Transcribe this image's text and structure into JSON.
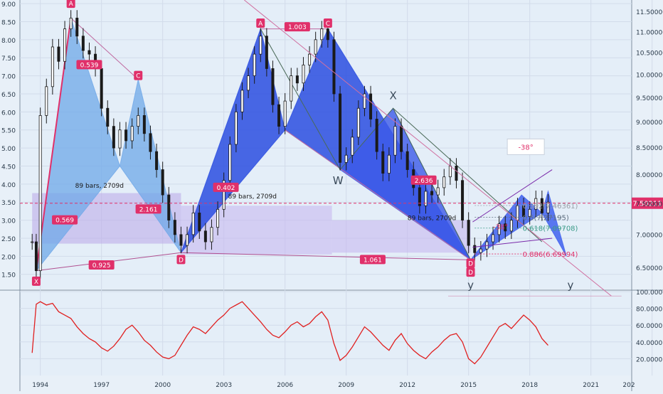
{
  "chart_data": [
    {
      "type": "candlestick",
      "panel": "price",
      "y_left": {
        "ticks": [
          "9.00",
          "8.50",
          "8.00",
          "7.50",
          "7.00",
          "6.50",
          "6.00",
          "5.50",
          "5.00",
          "4.50",
          "4.00",
          "3.50",
          "3.00",
          "2.50",
          "2.00",
          "1.50"
        ],
        "ylim": [
          1.1,
          9.1
        ]
      },
      "y_right": {
        "ticks": [
          "11.50000",
          "11.00000",
          "10.50000",
          "10.00000",
          "9.50000",
          "9.00000",
          "8.50000",
          "8.00000",
          "7.50000",
          "7.00000",
          "6.50000"
        ],
        "ylim": [
          6.2,
          11.8
        ],
        "scale": "log"
      },
      "x_ticks": [
        "1994",
        "1997",
        "2000",
        "2003",
        "2006",
        "2009",
        "2012",
        "2015",
        "2018",
        "2021",
        "202"
      ],
      "xlim": [
        1993.0,
        2023.0
      ],
      "grid": true,
      "series": [
        {
          "values": [
            [
              1993.6,
              2.4
            ],
            [
              1993.8,
              1.6
            ],
            [
              1994.0,
              5.9
            ],
            [
              1994.3,
              6.7
            ],
            [
              1994.6,
              7.8
            ],
            [
              1994.9,
              7.4
            ],
            [
              1995.2,
              8.3
            ],
            [
              1995.5,
              8.6
            ],
            [
              1995.8,
              8.1
            ],
            [
              1996.1,
              7.7
            ],
            [
              1996.4,
              7.6
            ],
            [
              1996.7,
              7.2
            ],
            [
              1997.0,
              6.1
            ],
            [
              1997.3,
              5.6
            ],
            [
              1997.6,
              5.0
            ],
            [
              1997.9,
              5.5
            ],
            [
              1998.2,
              5.2
            ],
            [
              1998.5,
              5.6
            ],
            [
              1998.8,
              5.9
            ],
            [
              1999.1,
              5.4
            ],
            [
              1999.4,
              4.9
            ],
            [
              1999.7,
              4.4
            ],
            [
              2000.0,
              3.7
            ],
            [
              2000.3,
              3.0
            ],
            [
              2000.6,
              2.6
            ],
            [
              2000.9,
              2.3
            ],
            [
              2001.2,
              2.6
            ],
            [
              2001.5,
              3.2
            ],
            [
              2001.8,
              2.7
            ],
            [
              2002.1,
              2.4
            ],
            [
              2002.4,
              2.8
            ],
            [
              2002.7,
              3.3
            ],
            [
              2003.0,
              4.1
            ],
            [
              2003.3,
              5.1
            ],
            [
              2003.6,
              6.0
            ],
            [
              2003.9,
              6.6
            ],
            [
              2004.2,
              7.0
            ],
            [
              2004.5,
              7.6
            ],
            [
              2004.8,
              8.1
            ],
            [
              2005.1,
              7.2
            ],
            [
              2005.4,
              6.2
            ],
            [
              2005.7,
              5.6
            ],
            [
              2006.0,
              6.3
            ],
            [
              2006.3,
              7.0
            ],
            [
              2006.6,
              6.8
            ],
            [
              2006.9,
              7.3
            ],
            [
              2007.2,
              7.6
            ],
            [
              2007.5,
              8.0
            ],
            [
              2007.8,
              8.3
            ],
            [
              2008.1,
              8.0
            ],
            [
              2008.4,
              6.5
            ],
            [
              2008.7,
              4.6
            ],
            [
              2009.0,
              4.8
            ],
            [
              2009.3,
              5.3
            ],
            [
              2009.6,
              6.1
            ],
            [
              2009.9,
              6.5
            ],
            [
              2010.2,
              5.8
            ],
            [
              2010.5,
              4.9
            ],
            [
              2010.8,
              4.3
            ],
            [
              2011.1,
              4.8
            ],
            [
              2011.4,
              5.6
            ],
            [
              2011.7,
              4.9
            ],
            [
              2012.0,
              4.4
            ],
            [
              2012.3,
              3.9
            ],
            [
              2012.6,
              3.4
            ],
            [
              2012.9,
              3.8
            ],
            [
              2013.2,
              3.7
            ],
            [
              2013.5,
              3.9
            ],
            [
              2013.8,
              4.2
            ],
            [
              2014.1,
              4.5
            ],
            [
              2014.4,
              4.1
            ],
            [
              2014.7,
              3.0
            ],
            [
              2015.0,
              2.3
            ],
            [
              2015.3,
              2.1
            ],
            [
              2015.6,
              2.2
            ],
            [
              2015.9,
              2.4
            ],
            [
              2016.2,
              2.6
            ],
            [
              2016.5,
              2.9
            ],
            [
              2016.8,
              2.7
            ],
            [
              2017.1,
              3.0
            ],
            [
              2017.4,
              3.4
            ],
            [
              2017.7,
              3.1
            ],
            [
              2018.0,
              3.3
            ],
            [
              2018.3,
              3.6
            ],
            [
              2018.6,
              3.2
            ],
            [
              2018.9,
              3.5
            ]
          ]
        }
      ],
      "harmonic_labels": {
        "points": [
          "A",
          "X",
          "C",
          "D",
          "A",
          "C",
          "W",
          "X",
          "D",
          "D"
        ],
        "ratios": [
          "0.539",
          "0.569",
          "0.925",
          "2.161",
          "0.402",
          "1.003",
          "1.061",
          "2.636",
          "-38°"
        ],
        "bars_text": [
          "89 bars, 2709d",
          "89 bars, 2709d",
          "89 bars, 2709d"
        ],
        "large_letters": [
          "X",
          "W",
          "y",
          "y"
        ]
      },
      "fib_levels": [
        {
          "label": "0.382(7.46361)",
          "color": "#9aa0a8"
        },
        {
          "label": "0.5(7.27195)",
          "color": "#607080"
        },
        {
          "label": "0.618(7.09708)",
          "color": "#3a9a88"
        },
        {
          "label": "0.886(6.69994)",
          "color": "#e0306a"
        }
      ],
      "price_label": {
        "text": "7.50211",
        "color": "#e0306a"
      },
      "angle_box": {
        "text": "-38°"
      }
    },
    {
      "type": "line",
      "panel": "oscillator",
      "y_right": {
        "ticks": [
          "100.0000",
          "80.0000",
          "60.0000",
          "40.0000",
          "20.0000"
        ],
        "ylim": [
          0,
          100
        ]
      },
      "color": "#e02020",
      "x": [
        1993.6,
        1993.8,
        1994.0,
        1994.3,
        1994.6,
        1994.9,
        1995.2,
        1995.5,
        1995.8,
        1996.1,
        1996.4,
        1996.7,
        1997.0,
        1997.3,
        1997.6,
        1997.9,
        1998.2,
        1998.5,
        1998.8,
        1999.1,
        1999.4,
        1999.7,
        2000.0,
        2000.3,
        2000.6,
        2000.9,
        2001.2,
        2001.5,
        2001.8,
        2002.1,
        2002.4,
        2002.7,
        2003.0,
        2003.3,
        2003.6,
        2003.9,
        2004.2,
        2004.5,
        2004.8,
        2005.1,
        2005.4,
        2005.7,
        2006.0,
        2006.3,
        2006.6,
        2006.9,
        2007.2,
        2007.5,
        2007.8,
        2008.1,
        2008.4,
        2008.7,
        2009.0,
        2009.3,
        2009.6,
        2009.9,
        2010.2,
        2010.5,
        2010.8,
        2011.1,
        2011.4,
        2011.7,
        2012.0,
        2012.3,
        2012.6,
        2012.9,
        2013.2,
        2013.5,
        2013.8,
        2014.1,
        2014.4,
        2014.7,
        2015.0,
        2015.3,
        2015.6,
        2015.9,
        2016.2,
        2016.5,
        2016.8,
        2017.1,
        2017.4,
        2017.7,
        2018.0,
        2018.3,
        2018.6,
        2018.9
      ],
      "values": [
        27,
        85,
        88,
        84,
        86,
        76,
        72,
        68,
        58,
        50,
        44,
        40,
        33,
        29,
        35,
        44,
        55,
        60,
        52,
        42,
        36,
        28,
        22,
        20,
        24,
        36,
        48,
        58,
        55,
        50,
        58,
        66,
        72,
        80,
        84,
        88,
        80,
        72,
        64,
        55,
        48,
        45,
        52,
        60,
        64,
        58,
        62,
        70,
        76,
        66,
        38,
        18,
        24,
        34,
        46,
        58,
        52,
        44,
        36,
        30,
        42,
        50,
        38,
        30,
        24,
        20,
        28,
        34,
        42,
        48,
        50,
        40,
        20,
        14,
        22,
        34,
        46,
        58,
        62,
        56,
        64,
        72,
        66,
        58,
        44,
        36
      ]
    }
  ]
}
